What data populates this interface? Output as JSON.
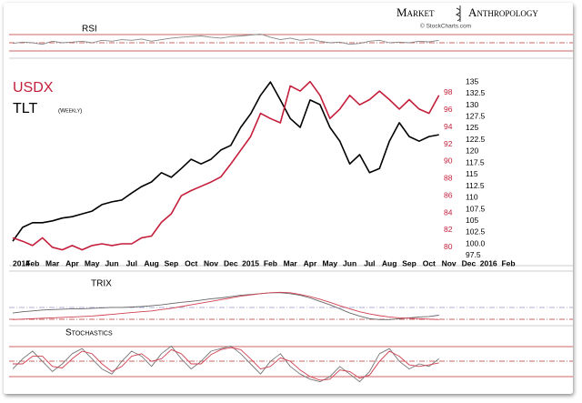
{
  "logo": {
    "word1": "Market",
    "word2": "Anthropology",
    "credit": "© StockCharts.com"
  },
  "chart_data": [
    {
      "type": "line",
      "annotation": "(Weekly)",
      "categories": [
        "2014",
        null,
        "Feb",
        null,
        "Mar",
        null,
        "Apr",
        null,
        "May",
        null,
        "Jun",
        null,
        "Jul",
        null,
        "Aug",
        null,
        "Sep",
        null,
        "Oct",
        null,
        "Nov",
        null,
        "Dec",
        null,
        "2015",
        null,
        "Feb",
        null,
        "Mar",
        null,
        "Apr",
        null,
        "May",
        null,
        "Jun",
        null,
        "Jul",
        null,
        "Aug",
        null,
        "Sep",
        null,
        "Oct",
        null,
        "Nov",
        null,
        "Dec",
        null,
        "2016",
        null,
        "Feb",
        null
      ],
      "series": [
        {
          "name": "TLT",
          "color": "#000000",
          "values": [
            100.6,
            103.6,
            104.6,
            104.6,
            105.0,
            105.6,
            105.9,
            106.5,
            107.1,
            108.5,
            109.1,
            109.5,
            111.0,
            112.4,
            113.4,
            115.4,
            114.4,
            116.3,
            118.3,
            117.3,
            118.3,
            120.3,
            121.3,
            125.2,
            128.1,
            132.1,
            135.0,
            131.1,
            127.1,
            125.2,
            131.1,
            130.1,
            125.2,
            122.2,
            117.3,
            119.3,
            115.4,
            116.3,
            122.2,
            126.2,
            123.2,
            122.2,
            123.2,
            123.6,
            null,
            null,
            null,
            null,
            null,
            null,
            null,
            null
          ]
        },
        {
          "name": "USDX",
          "color": "#c41e3a",
          "axis": "y2",
          "values": [
            81.1,
            80.7,
            80.2,
            81.1,
            80.0,
            79.7,
            80.2,
            79.7,
            80.2,
            80.4,
            80.2,
            80.4,
            80.4,
            81.1,
            81.3,
            82.9,
            83.9,
            86.0,
            86.6,
            87.1,
            87.6,
            88.2,
            89.7,
            91.3,
            92.9,
            95.6,
            95.0,
            94.5,
            98.8,
            98.2,
            99.3,
            97.7,
            95.0,
            96.1,
            97.7,
            96.6,
            97.2,
            98.2,
            97.2,
            96.1,
            97.2,
            96.1,
            95.6,
            97.7,
            null,
            null,
            null,
            null,
            null,
            null,
            null,
            null
          ]
        }
      ],
      "ylim": [
        96.7,
        136.0
      ],
      "yticks": [
        97.5,
        {
          "value": 100,
          "label": "100.0"
        },
        102.5,
        105.0,
        107.5,
        110.0,
        112.5,
        115.0,
        117.5,
        120.0,
        122.5,
        125.0,
        127.5,
        130.0,
        132.5,
        135.0
      ],
      "y2lim": [
        78.6,
        99.8
      ],
      "y2ticks": [
        80,
        82,
        84,
        86,
        88,
        90,
        92,
        94,
        96,
        98
      ]
    },
    {
      "type": "line",
      "title": "RSI",
      "ylim": [
        0,
        100
      ],
      "color": "#888888",
      "values": [
        48,
        52,
        50,
        45,
        55,
        50,
        52,
        55,
        50,
        58,
        55,
        60,
        58,
        62,
        55,
        60,
        65,
        68,
        70,
        72,
        68,
        65,
        70,
        72,
        75,
        78,
        68,
        60,
        65,
        58,
        62,
        55,
        50,
        52,
        45,
        48,
        55,
        58,
        50,
        52,
        50,
        55,
        53,
        58
      ]
    },
    {
      "type": "line",
      "title": "TRIX",
      "ylim": [
        -0.3,
        0.5
      ],
      "series": [
        {
          "color": "#666666",
          "values": [
            -0.05,
            -0.02,
            0,
            0.02,
            0.03,
            0.04,
            0.05,
            0.05,
            0.06,
            0.07,
            0.08,
            0.08,
            0.09,
            0.1,
            0.12,
            0.14,
            0.17,
            0.2,
            0.22,
            0.25,
            0.28,
            0.3,
            0.33,
            0.36,
            0.38,
            0.4,
            0.42,
            0.42,
            0.4,
            0.36,
            0.3,
            0.22,
            0.14,
            0.05,
            -0.05,
            -0.12,
            -0.18,
            -0.2,
            -0.2,
            -0.18,
            -0.16,
            -0.14,
            -0.13,
            -0.1
          ]
        },
        {
          "color": "#d04050",
          "values": [
            -0.2,
            -0.19,
            -0.18,
            -0.17,
            -0.16,
            -0.15,
            -0.14,
            -0.13,
            -0.12,
            -0.1,
            -0.08,
            -0.06,
            -0.04,
            -0.02,
            0,
            0.03,
            0.06,
            0.1,
            0.14,
            0.18,
            0.22,
            0.26,
            0.3,
            0.34,
            0.37,
            0.4,
            0.42,
            0.43,
            0.42,
            0.38,
            0.33,
            0.27,
            0.2,
            0.12,
            0.05,
            -0.02,
            -0.07,
            -0.11,
            -0.14,
            -0.16,
            -0.17,
            -0.18,
            -0.19,
            -0.2
          ]
        }
      ]
    },
    {
      "type": "line",
      "title": "Stochastics",
      "ylim": [
        0,
        100
      ],
      "series": [
        {
          "color": "#777777",
          "values": [
            40,
            60,
            75,
            55,
            35,
            50,
            70,
            80,
            60,
            40,
            30,
            55,
            75,
            65,
            45,
            70,
            85,
            60,
            40,
            55,
            75,
            80,
            85,
            70,
            50,
            30,
            55,
            70,
            45,
            30,
            20,
            15,
            25,
            45,
            30,
            15,
            35,
            70,
            80,
            55,
            40,
            50,
            45,
            60
          ]
        },
        {
          "color": "#d04050",
          "values": [
            50,
            50,
            65,
            65,
            45,
            42,
            60,
            75,
            70,
            50,
            35,
            45,
            65,
            70,
            55,
            60,
            78,
            70,
            50,
            50,
            68,
            78,
            82,
            78,
            60,
            40,
            45,
            62,
            55,
            38,
            25,
            18,
            20,
            38,
            35,
            22,
            28,
            55,
            75,
            65,
            48,
            45,
            48,
            52
          ]
        }
      ]
    }
  ]
}
